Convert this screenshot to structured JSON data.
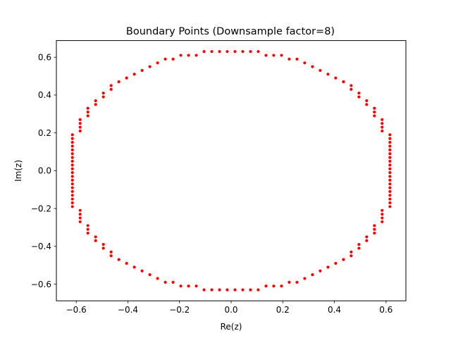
{
  "chart_data": {
    "type": "scatter",
    "title": "Boundary Points (Downsample factor=8)",
    "xlabel": "Re(z)",
    "ylabel": "Im(z)",
    "xlim": [
      -0.677,
      0.677
    ],
    "ylim": [
      -0.688,
      0.688
    ],
    "xticks": [
      -0.6,
      -0.4,
      -0.2,
      0.0,
      0.2,
      0.4,
      0.6
    ],
    "yticks": [
      -0.6,
      -0.4,
      -0.2,
      0.0,
      0.2,
      0.4,
      0.6
    ],
    "xtick_labels": [
      "−0.6",
      "−0.4",
      "−0.2",
      "0.0",
      "0.2",
      "0.4",
      "0.6"
    ],
    "ytick_labels": [
      "−0.6",
      "−0.4",
      "−0.2",
      "0.0",
      "0.2",
      "0.4",
      "0.6"
    ],
    "grid": false,
    "marker_color": "#ff0000",
    "series": [
      {
        "points": [
          [
            -0.615,
            0.19
          ],
          [
            -0.615,
            0.17
          ],
          [
            -0.615,
            0.15
          ],
          [
            -0.615,
            0.13
          ],
          [
            -0.615,
            0.11
          ],
          [
            -0.615,
            0.09
          ],
          [
            -0.615,
            0.07
          ],
          [
            -0.615,
            0.05
          ],
          [
            -0.615,
            0.03
          ],
          [
            -0.615,
            0.01
          ],
          [
            -0.615,
            -0.01
          ],
          [
            -0.615,
            -0.03
          ],
          [
            -0.615,
            -0.05
          ],
          [
            -0.615,
            -0.07
          ],
          [
            -0.615,
            -0.09
          ],
          [
            -0.615,
            -0.11
          ],
          [
            -0.615,
            -0.13
          ],
          [
            -0.615,
            -0.15
          ],
          [
            -0.615,
            -0.17
          ],
          [
            -0.615,
            -0.19
          ],
          [
            0.615,
            0.19
          ],
          [
            0.615,
            0.17
          ],
          [
            0.615,
            0.15
          ],
          [
            0.615,
            0.13
          ],
          [
            0.615,
            0.11
          ],
          [
            0.615,
            0.09
          ],
          [
            0.615,
            0.07
          ],
          [
            0.615,
            0.05
          ],
          [
            0.615,
            0.03
          ],
          [
            0.615,
            0.01
          ],
          [
            0.615,
            -0.01
          ],
          [
            0.615,
            -0.03
          ],
          [
            0.615,
            -0.05
          ],
          [
            0.615,
            -0.07
          ],
          [
            0.615,
            -0.09
          ],
          [
            0.615,
            -0.11
          ],
          [
            0.615,
            -0.13
          ],
          [
            0.615,
            -0.15
          ],
          [
            0.615,
            -0.17
          ],
          [
            0.615,
            -0.19
          ],
          [
            -0.585,
            0.27
          ],
          [
            -0.585,
            0.25
          ],
          [
            -0.585,
            0.23
          ],
          [
            -0.585,
            0.21
          ],
          [
            -0.585,
            -0.21
          ],
          [
            -0.585,
            -0.23
          ],
          [
            -0.585,
            -0.25
          ],
          [
            -0.585,
            -0.27
          ],
          [
            0.585,
            0.27
          ],
          [
            0.585,
            0.25
          ],
          [
            0.585,
            0.23
          ],
          [
            0.585,
            0.21
          ],
          [
            0.585,
            -0.21
          ],
          [
            0.585,
            -0.23
          ],
          [
            0.585,
            -0.25
          ],
          [
            0.585,
            -0.27
          ],
          [
            -0.555,
            0.33
          ],
          [
            -0.555,
            0.31
          ],
          [
            -0.555,
            0.29
          ],
          [
            -0.555,
            -0.29
          ],
          [
            -0.555,
            -0.31
          ],
          [
            -0.555,
            -0.33
          ],
          [
            0.555,
            0.33
          ],
          [
            0.555,
            0.31
          ],
          [
            0.555,
            0.29
          ],
          [
            0.555,
            -0.29
          ],
          [
            0.555,
            -0.31
          ],
          [
            0.555,
            -0.33
          ],
          [
            -0.525,
            0.37
          ],
          [
            -0.525,
            0.35
          ],
          [
            -0.525,
            -0.35
          ],
          [
            -0.525,
            -0.37
          ],
          [
            0.525,
            0.37
          ],
          [
            0.525,
            0.35
          ],
          [
            0.525,
            -0.35
          ],
          [
            0.525,
            -0.37
          ],
          [
            -0.495,
            0.41
          ],
          [
            -0.495,
            0.39
          ],
          [
            -0.495,
            -0.39
          ],
          [
            -0.495,
            -0.41
          ],
          [
            0.495,
            0.41
          ],
          [
            0.495,
            0.39
          ],
          [
            0.495,
            -0.39
          ],
          [
            0.495,
            -0.41
          ],
          [
            -0.465,
            0.45
          ],
          [
            -0.465,
            0.43
          ],
          [
            -0.465,
            -0.43
          ],
          [
            -0.465,
            -0.45
          ],
          [
            0.465,
            0.45
          ],
          [
            0.465,
            0.43
          ],
          [
            0.465,
            -0.43
          ],
          [
            0.465,
            -0.45
          ],
          [
            -0.435,
            0.47
          ],
          [
            -0.435,
            -0.47
          ],
          [
            0.435,
            0.47
          ],
          [
            0.435,
            -0.47
          ],
          [
            -0.405,
            0.49
          ],
          [
            -0.405,
            -0.49
          ],
          [
            0.405,
            0.49
          ],
          [
            0.405,
            -0.49
          ],
          [
            -0.375,
            0.51
          ],
          [
            -0.375,
            -0.51
          ],
          [
            0.375,
            0.51
          ],
          [
            0.375,
            -0.51
          ],
          [
            -0.345,
            0.53
          ],
          [
            -0.345,
            -0.53
          ],
          [
            0.345,
            0.53
          ],
          [
            0.345,
            -0.53
          ],
          [
            -0.315,
            0.55
          ],
          [
            -0.315,
            -0.55
          ],
          [
            0.315,
            0.55
          ],
          [
            0.315,
            -0.55
          ],
          [
            -0.285,
            0.57
          ],
          [
            -0.285,
            -0.57
          ],
          [
            0.285,
            0.57
          ],
          [
            0.285,
            -0.57
          ],
          [
            -0.255,
            0.59
          ],
          [
            -0.255,
            -0.59
          ],
          [
            0.255,
            0.59
          ],
          [
            0.255,
            -0.59
          ],
          [
            -0.225,
            0.59
          ],
          [
            -0.225,
            -0.59
          ],
          [
            0.225,
            0.59
          ],
          [
            0.225,
            -0.59
          ],
          [
            -0.195,
            0.61
          ],
          [
            -0.195,
            -0.61
          ],
          [
            0.195,
            0.61
          ],
          [
            0.195,
            -0.61
          ],
          [
            -0.165,
            0.61
          ],
          [
            -0.165,
            -0.61
          ],
          [
            0.165,
            0.61
          ],
          [
            0.165,
            -0.61
          ],
          [
            -0.135,
            0.61
          ],
          [
            -0.135,
            -0.61
          ],
          [
            0.135,
            0.61
          ],
          [
            0.135,
            -0.61
          ],
          [
            -0.105,
            0.63
          ],
          [
            -0.105,
            -0.63
          ],
          [
            0.105,
            0.63
          ],
          [
            0.105,
            -0.63
          ],
          [
            -0.075,
            0.63
          ],
          [
            -0.075,
            -0.63
          ],
          [
            0.075,
            0.63
          ],
          [
            0.075,
            -0.63
          ],
          [
            -0.045,
            0.63
          ],
          [
            -0.045,
            -0.63
          ],
          [
            0.045,
            0.63
          ],
          [
            0.045,
            -0.63
          ],
          [
            -0.015,
            0.63
          ],
          [
            -0.015,
            -0.63
          ],
          [
            0.015,
            0.63
          ],
          [
            0.015,
            -0.63
          ]
        ]
      }
    ]
  }
}
